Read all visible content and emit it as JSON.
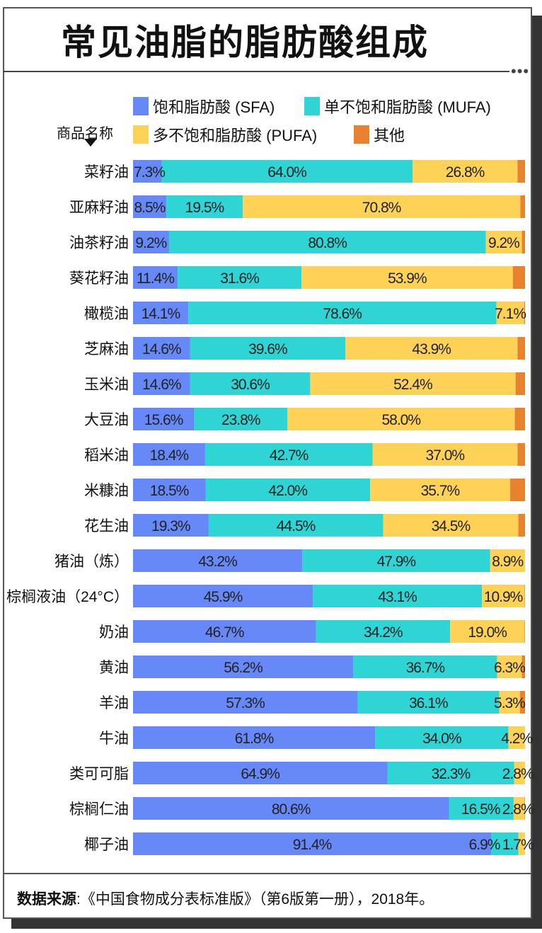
{
  "title": "常见油脂的脂肪酸组成",
  "chart_data": {
    "type": "bar",
    "orientation": "horizontal",
    "stacked": true,
    "title": "常见油脂的脂肪酸组成",
    "ylabel": "商品名称",
    "xlim": [
      0,
      100
    ],
    "unit": "%",
    "legend_position": "top",
    "categories": [
      "菜籽油",
      "亚麻籽油",
      "油茶籽油",
      "葵花籽油",
      "橄榄油",
      "芝麻油",
      "玉米油",
      "大豆油",
      "稻米油",
      "米糠油",
      "花生油",
      "猪油（炼）",
      "棕榈液油（24°C）",
      "奶油",
      "黄油",
      "羊油",
      "牛油",
      "类可可脂",
      "棕榈仁油",
      "椰子油"
    ],
    "series": [
      {
        "name": "饱和脂肪酸 (SFA)",
        "color": "#6689f7",
        "values": [
          7.3,
          8.5,
          9.2,
          11.4,
          14.1,
          14.6,
          14.6,
          15.6,
          18.4,
          18.5,
          19.3,
          43.2,
          45.9,
          46.7,
          56.2,
          57.3,
          61.8,
          64.9,
          80.6,
          91.4
        ]
      },
      {
        "name": "单不饱和脂肪酸 (MUFA)",
        "color": "#2fd4d4",
        "values": [
          64.0,
          19.5,
          80.8,
          31.6,
          78.6,
          39.6,
          30.6,
          23.8,
          42.7,
          42.0,
          44.5,
          47.9,
          43.1,
          34.2,
          36.7,
          36.1,
          34.0,
          32.3,
          16.5,
          6.9
        ]
      },
      {
        "name": "多不饱和脂肪酸 (PUFA)",
        "color": "#fdd257",
        "values": [
          26.8,
          70.8,
          9.2,
          53.9,
          7.1,
          43.9,
          52.4,
          58.0,
          37.0,
          35.7,
          34.5,
          8.9,
          10.9,
          19.0,
          6.3,
          5.3,
          4.2,
          2.8,
          2.8,
          1.7
        ]
      },
      {
        "name": "其他",
        "color": "#e9822f",
        "values": [
          1.9,
          1.2,
          0.8,
          3.1,
          0.2,
          1.9,
          2.4,
          2.6,
          1.9,
          3.8,
          1.7,
          0,
          0.1,
          0.1,
          0.8,
          1.3,
          0,
          0,
          0.1,
          0
        ]
      }
    ],
    "labeled_series": [
      0,
      1,
      2
    ]
  },
  "footer": {
    "source_label": "数据来源",
    "source_text": ":《中国食物成分表标准版》（第6版第一册），2018年。"
  }
}
